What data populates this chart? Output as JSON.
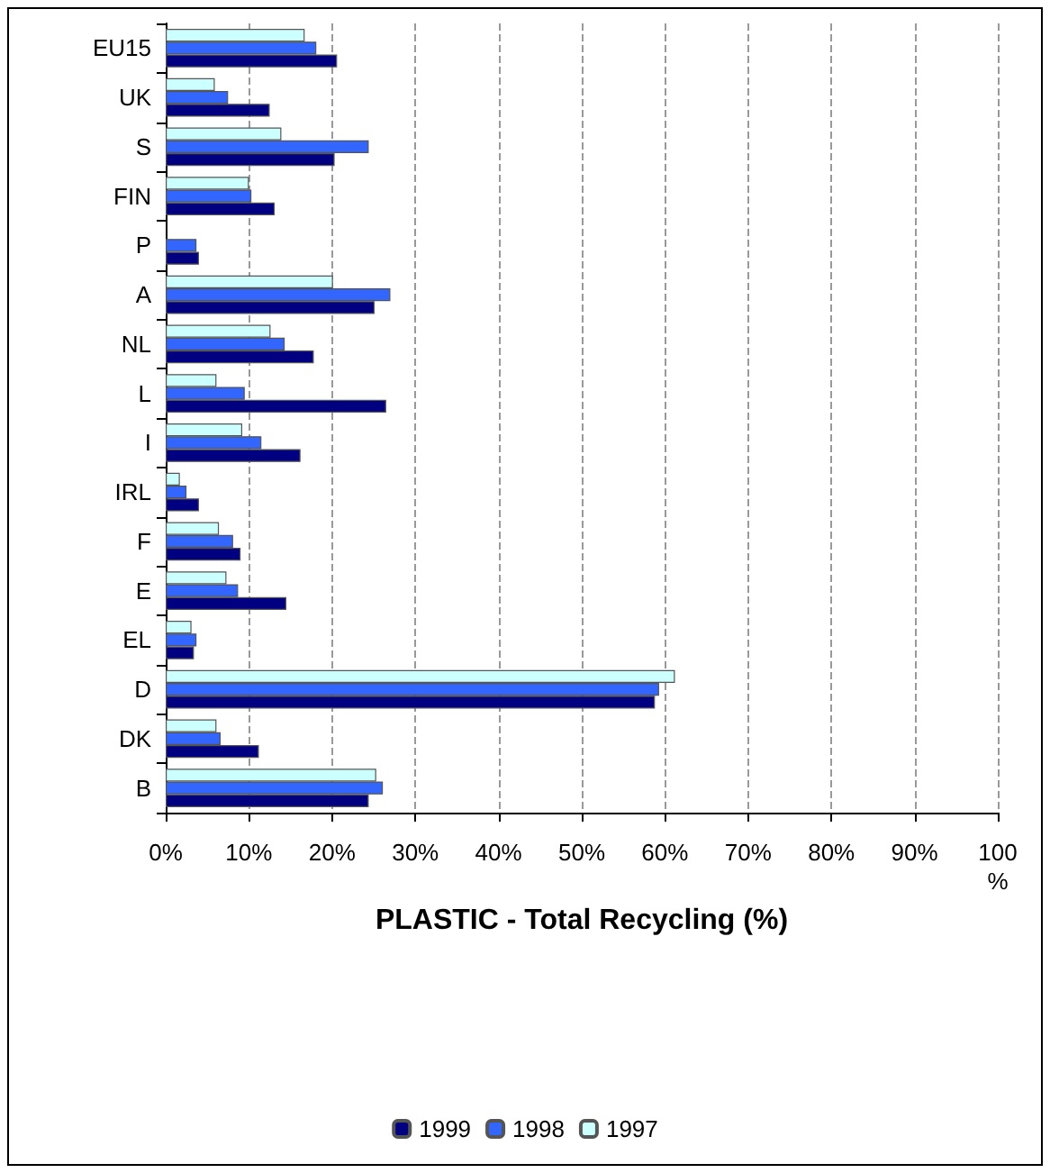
{
  "chart_data": {
    "type": "bar",
    "orientation": "horizontal",
    "xlabel": "PLASTIC - Total Recycling (%)",
    "categories": [
      "EU15",
      "UK",
      "S",
      "FIN",
      "P",
      "A",
      "NL",
      "L",
      "I",
      "IRL",
      "F",
      "E",
      "EL",
      "D",
      "DK",
      "B"
    ],
    "series": [
      {
        "name": "1999",
        "color": "#000080",
        "values": [
          20.6,
          12.5,
          20.3,
          13.1,
          4.0,
          25.1,
          17.8,
          26.5,
          16.2,
          4.0,
          9.0,
          14.5,
          3.4,
          58.8,
          11.2,
          24.4
        ]
      },
      {
        "name": "1998",
        "color": "#3366ff",
        "values": [
          18.1,
          7.5,
          24.4,
          10.3,
          3.7,
          27.0,
          14.3,
          9.5,
          11.5,
          2.5,
          8.1,
          8.7,
          3.7,
          59.3,
          6.6,
          26.1
        ]
      },
      {
        "name": "1997",
        "color": "#ccffff",
        "values": [
          16.7,
          5.9,
          13.9,
          10.0,
          null,
          20.1,
          12.6,
          6.1,
          9.2,
          1.7,
          6.4,
          7.3,
          3.1,
          61.2,
          6.1,
          25.3
        ]
      }
    ],
    "xlim": [
      0,
      100
    ],
    "xticks": [
      {
        "value": 0,
        "label": "0%"
      },
      {
        "value": 10,
        "label": "10%"
      },
      {
        "value": 20,
        "label": "20%"
      },
      {
        "value": 30,
        "label": "30%"
      },
      {
        "value": 40,
        "label": "40%"
      },
      {
        "value": 50,
        "label": "50%"
      },
      {
        "value": 60,
        "label": "60%"
      },
      {
        "value": 70,
        "label": "70%"
      },
      {
        "value": 80,
        "label": "80%"
      },
      {
        "value": 90,
        "label": "90%"
      },
      {
        "value": 100,
        "label": "100\n%"
      }
    ],
    "grid": "x",
    "legend": "bottom"
  }
}
